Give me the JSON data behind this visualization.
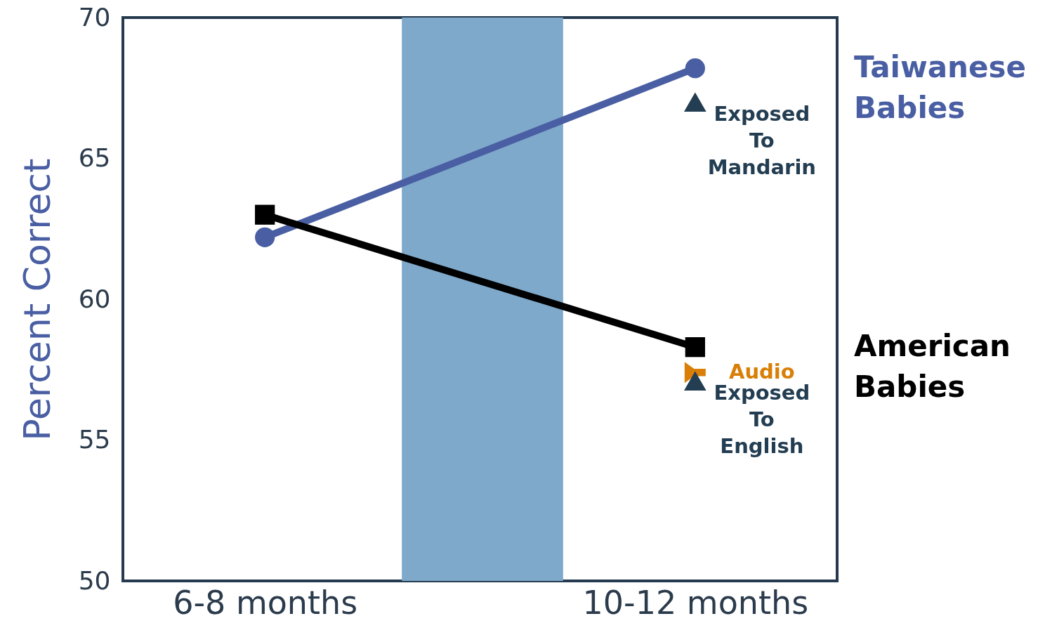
{
  "chart_data": {
    "type": "line",
    "ylabel": "Percent Correct",
    "categories": [
      "6-8 months",
      "10-12 months"
    ],
    "series": [
      {
        "name": "Taiwanese Babies",
        "color": "#4a5fa3",
        "marker": "circle",
        "values": [
          62.2,
          68.2
        ]
      },
      {
        "name": "American Babies",
        "color": "#000000",
        "marker": "square",
        "values": [
          63.0,
          58.3
        ]
      },
      {
        "name": "Exposed To Mandarin",
        "type": "scatter",
        "color": "#233d52",
        "marker": "triangle",
        "x": [
          "10-12 months"
        ],
        "values": [
          67.0
        ]
      },
      {
        "name": "Audio",
        "type": "scatter",
        "color": "#d97e06",
        "x": [
          "10-12 months"
        ],
        "values": [
          57.4
        ]
      },
      {
        "name": "Exposed To English",
        "type": "scatter",
        "color": "#233d52",
        "marker": "triangle",
        "x": [
          "10-12 months"
        ],
        "values": [
          57.1
        ]
      }
    ],
    "bands": [
      {
        "axis": "x",
        "from": "6-8 months",
        "to": "10-12 months",
        "color": "#7fa9cb"
      }
    ],
    "ylim": [
      50,
      70
    ],
    "yticks": [
      50,
      55,
      60,
      65,
      70
    ],
    "grid": false,
    "line_style": "solid"
  }
}
